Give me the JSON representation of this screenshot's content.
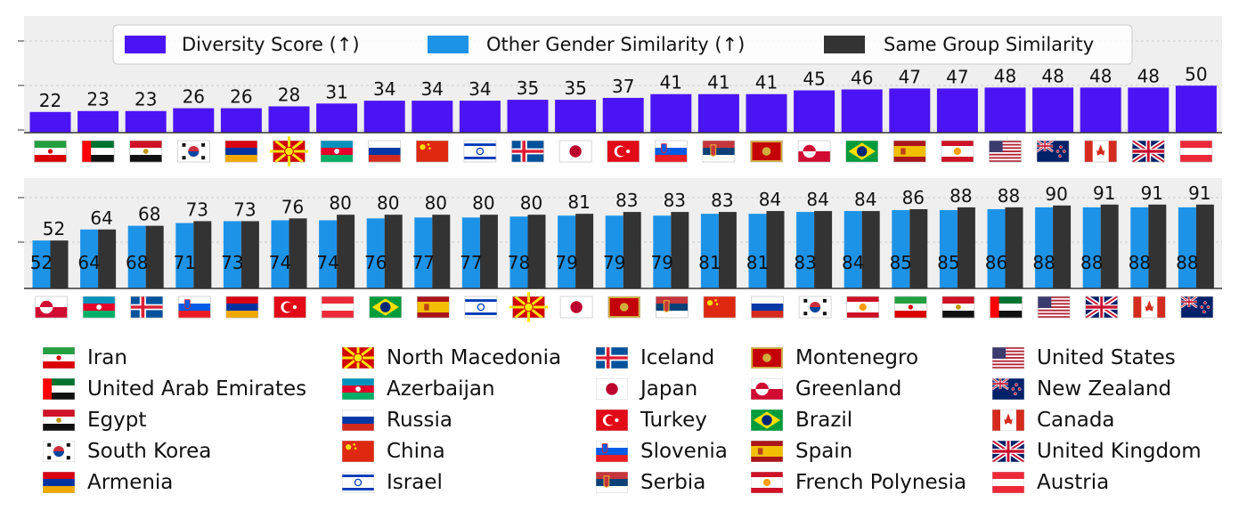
{
  "legend": {
    "diversity": "Diversity Score (↑)",
    "other": "Other Gender Similarity (↑)",
    "same": "Same Group Similarity"
  },
  "colors": {
    "diversity": "#4b14f5",
    "other": "#1d93e8",
    "same": "#333333",
    "panel": "#efefef"
  },
  "chart_data": [
    {
      "type": "bar",
      "categories": [
        "Iran",
        "United Arab Emirates",
        "Egypt",
        "South Korea",
        "Armenia",
        "North Macedonia",
        "Azerbaijan",
        "Russia",
        "China",
        "Israel",
        "Iceland",
        "Japan",
        "Turkey",
        "Slovenia",
        "Serbia",
        "Montenegro",
        "Greenland",
        "Brazil",
        "Spain",
        "French Polynesia",
        "United States",
        "New Zealand",
        "Canada",
        "United Kingdom",
        "Austria"
      ],
      "series": [
        {
          "name": "Diversity Score (↑)",
          "values": [
            22,
            23,
            23,
            26,
            26,
            28,
            31,
            34,
            34,
            34,
            35,
            35,
            37,
            41,
            41,
            41,
            45,
            46,
            47,
            47,
            48,
            48,
            48,
            48,
            50
          ]
        }
      ],
      "legend": "top-center",
      "grid": true
    },
    {
      "type": "bar",
      "categories": [
        "Greenland",
        "Azerbaijan",
        "Iceland",
        "Slovenia",
        "Armenia",
        "Turkey",
        "Austria",
        "Brazil",
        "Spain",
        "Israel",
        "North Macedonia",
        "Japan",
        "Montenegro",
        "Serbia",
        "China",
        "Russia",
        "South Korea",
        "French Polynesia",
        "Iran",
        "Egypt",
        "United Arab Emirates",
        "United States",
        "United Kingdom",
        "Canada",
        "New Zealand"
      ],
      "series": [
        {
          "name": "Other Gender Similarity (↑)",
          "values": [
            52,
            64,
            68,
            71,
            73,
            74,
            74,
            76,
            77,
            77,
            78,
            79,
            79,
            79,
            81,
            81,
            83,
            84,
            85,
            85,
            86,
            88,
            88,
            88,
            88
          ]
        },
        {
          "name": "Same Group Similarity",
          "values": [
            52,
            64,
            68,
            73,
            73,
            76,
            80,
            80,
            80,
            80,
            80,
            81,
            83,
            83,
            83,
            84,
            84,
            84,
            86,
            88,
            88,
            90,
            91,
            91,
            91
          ]
        }
      ],
      "grid": true
    }
  ],
  "country_legend": [
    [
      "Iran",
      "United Arab Emirates",
      "Egypt",
      "South Korea",
      "Armenia"
    ],
    [
      "North Macedonia",
      "Azerbaijan",
      "Russia",
      "China",
      "Israel"
    ],
    [
      "Iceland",
      "Japan",
      "Turkey",
      "Slovenia",
      "Serbia"
    ],
    [
      "Montenegro",
      "Greenland",
      "Brazil",
      "Spain",
      "French Polynesia"
    ],
    [
      "United States",
      "New Zealand",
      "Canada",
      "United Kingdom",
      "Austria"
    ]
  ]
}
